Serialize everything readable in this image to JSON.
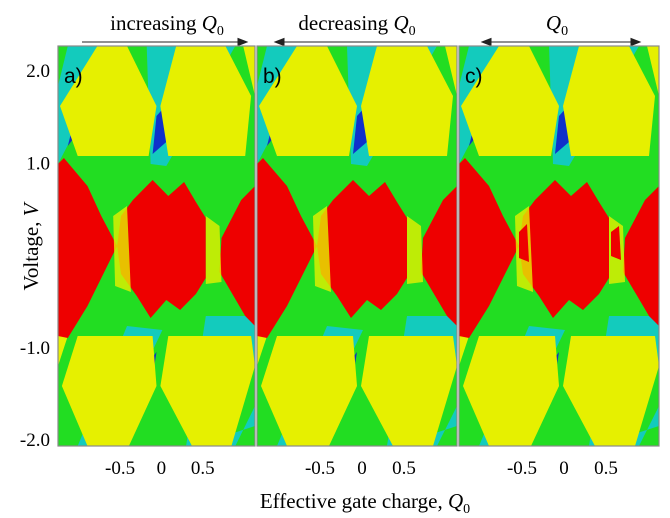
{
  "chart_data": {
    "type": "heatmap",
    "panels": [
      {
        "label": "a)",
        "title_text": "increasing ",
        "title_var": "Q",
        "title_sub": "0",
        "arrow": "right"
      },
      {
        "label": "b)",
        "title_text": "decreasing ",
        "title_var": "Q",
        "title_sub": "0",
        "arrow": "left"
      },
      {
        "label": "c)",
        "title_text": "",
        "title_var": "Q",
        "title_sub": "0",
        "arrow": "both"
      }
    ],
    "xlabel_text": "Effective gate charge, ",
    "xlabel_var": "Q",
    "xlabel_sub": "0",
    "ylabel_text": "Voltage, ",
    "ylabel_var": "V",
    "xlim": [
      -1.0,
      1.0
    ],
    "ylim": [
      -2.05,
      2.05
    ],
    "xticks": [
      {
        "value": -0.5,
        "label": "-0.5"
      },
      {
        "value": 0,
        "label": "0"
      },
      {
        "value": 0.5,
        "label": "0.5"
      }
    ],
    "yticks": [
      {
        "value": 2.0,
        "label": "2.0"
      },
      {
        "value": 1.0,
        "label": "1.0"
      },
      {
        "value": -1.0,
        "label": "-1.0"
      },
      {
        "value": -2.0,
        "label": "-2.0"
      }
    ],
    "colormap": {
      "red": "#ee0000",
      "yellow": "#e6f000",
      "green": "#22dd22",
      "cyan": "#10c8d8",
      "blue": "#1020cc"
    }
  }
}
